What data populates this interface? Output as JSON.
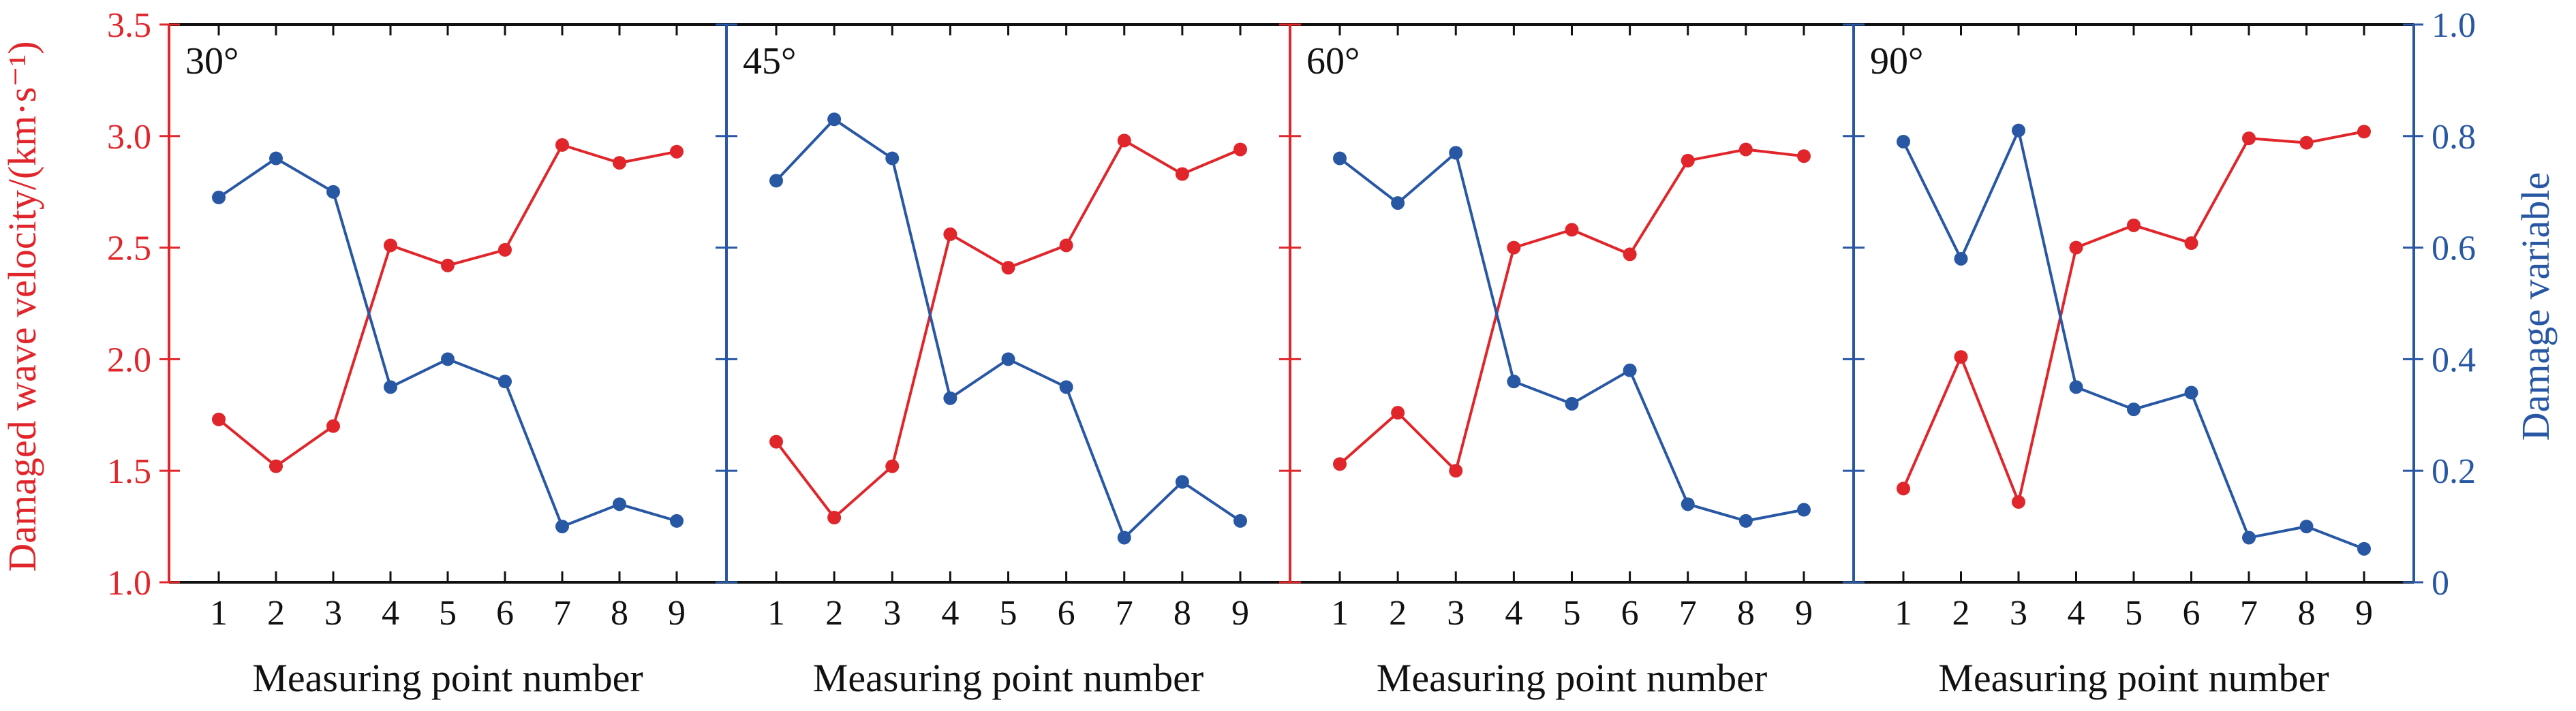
{
  "colors": {
    "velocity": "#e0262b",
    "damage": "#2857a4",
    "frame": "#111111"
  },
  "axes": {
    "left_title": "Damaged wave velocity/(km·s⁻¹)",
    "right_title": "Damage variable",
    "left_ticks": [
      "1.0",
      "1.5",
      "2.0",
      "2.5",
      "3.0",
      "3.5"
    ],
    "right_ticks": [
      "0",
      "0.2",
      "0.4",
      "0.6",
      "0.8",
      "1.0"
    ],
    "x_ticks": [
      "1",
      "2",
      "3",
      "4",
      "5",
      "6",
      "7",
      "8",
      "9"
    ]
  },
  "chart_data": [
    {
      "type": "line",
      "panel_label": "30°",
      "xlabel": "Measuring point number",
      "ylabel": "Damaged wave velocity/(km·s⁻¹)",
      "y2label": "Damage variable",
      "x": [
        1,
        2,
        3,
        4,
        5,
        6,
        7,
        8,
        9
      ],
      "ylim": [
        1.0,
        3.5
      ],
      "y2lim": [
        0,
        1.0
      ],
      "series": [
        {
          "axis": "left",
          "values": [
            1.73,
            1.52,
            1.7,
            2.51,
            2.42,
            2.49,
            2.96,
            2.88,
            2.93
          ]
        },
        {
          "axis": "right",
          "values": [
            0.69,
            0.76,
            0.7,
            0.35,
            0.4,
            0.36,
            0.1,
            0.14,
            0.11
          ]
        }
      ]
    },
    {
      "type": "line",
      "panel_label": "45°",
      "xlabel": "Measuring point number",
      "ylabel": "Damaged wave velocity/(km·s⁻¹)",
      "y2label": "Damage variable",
      "x": [
        1,
        2,
        3,
        4,
        5,
        6,
        7,
        8,
        9
      ],
      "ylim": [
        1.0,
        3.5
      ],
      "y2lim": [
        0,
        1.0
      ],
      "series": [
        {
          "axis": "left",
          "values": [
            1.63,
            1.29,
            1.52,
            2.56,
            2.41,
            2.51,
            2.98,
            2.83,
            2.94
          ]
        },
        {
          "axis": "right",
          "values": [
            0.72,
            0.83,
            0.76,
            0.33,
            0.4,
            0.35,
            0.08,
            0.18,
            0.11
          ]
        }
      ]
    },
    {
      "type": "line",
      "panel_label": "60°",
      "xlabel": "Measuring point number",
      "ylabel": "Damaged wave velocity/(km·s⁻¹)",
      "y2label": "Damage variable",
      "x": [
        1,
        2,
        3,
        4,
        5,
        6,
        7,
        8,
        9
      ],
      "ylim": [
        1.0,
        3.5
      ],
      "y2lim": [
        0,
        1.0
      ],
      "series": [
        {
          "axis": "left",
          "values": [
            1.53,
            1.76,
            1.5,
            2.5,
            2.58,
            2.47,
            2.89,
            2.94,
            2.91
          ]
        },
        {
          "axis": "right",
          "values": [
            0.76,
            0.68,
            0.77,
            0.36,
            0.32,
            0.38,
            0.14,
            0.11,
            0.13
          ]
        }
      ]
    },
    {
      "type": "line",
      "panel_label": "90°",
      "xlabel": "Measuring point number",
      "ylabel": "Damaged wave velocity/(km·s⁻¹)",
      "y2label": "Damage variable",
      "x": [
        1,
        2,
        3,
        4,
        5,
        6,
        7,
        8,
        9
      ],
      "ylim": [
        1.0,
        3.5
      ],
      "y2lim": [
        0,
        1.0
      ],
      "series": [
        {
          "axis": "left",
          "values": [
            1.42,
            2.01,
            1.36,
            2.5,
            2.6,
            2.52,
            2.99,
            2.97,
            3.02
          ]
        },
        {
          "axis": "right",
          "values": [
            0.79,
            0.58,
            0.81,
            0.35,
            0.31,
            0.34,
            0.08,
            0.1,
            0.06
          ]
        }
      ]
    }
  ]
}
